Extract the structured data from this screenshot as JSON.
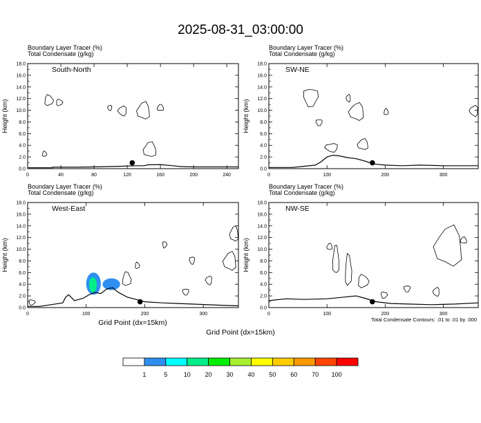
{
  "title": "2025-08-31_03:00:00",
  "field_label_1": "Boundary Layer Tracer   (%)",
  "field_label_2": "Total Condensate   (g/kg)",
  "ylabel": "Height (km)",
  "xlabel": "Grid Point (dx=15km)",
  "contour_note": "Total Condensate Contours: .01 to .01 by .000",
  "colorbar": {
    "colors": [
      "#ffffff",
      "#2f8ff0",
      "#00ffff",
      "#00ee88",
      "#00ee00",
      "#a8f030",
      "#ffff00",
      "#ffcc00",
      "#ff9900",
      "#ff4400",
      "#ff0000"
    ],
    "labels": [
      "1",
      "5",
      "10",
      "20",
      "30",
      "40",
      "50",
      "60",
      "70",
      "100"
    ]
  },
  "chart_data": [
    {
      "type": "contour",
      "name": "South-North",
      "xlim": [
        0,
        254
      ],
      "xticks": [
        0,
        40,
        80,
        120,
        160,
        200,
        240
      ],
      "ylim": [
        0,
        18
      ],
      "yticks": [
        0.0,
        2.0,
        4.0,
        6.0,
        8.0,
        10.0,
        12.0,
        14.0,
        16.0,
        18.0
      ],
      "marker": {
        "x": 126,
        "y": 1.0
      },
      "terrain": [
        [
          0,
          0.15
        ],
        [
          30,
          0.15
        ],
        [
          30,
          0.25
        ],
        [
          60,
          0.25
        ],
        [
          80,
          0.3
        ],
        [
          110,
          0.4
        ],
        [
          130,
          0.5
        ],
        [
          140,
          0.5
        ],
        [
          145,
          0.65
        ],
        [
          160,
          0.7
        ],
        [
          175,
          0.5
        ],
        [
          185,
          0.35
        ],
        [
          200,
          0.3
        ],
        [
          254,
          0.3
        ]
      ],
      "shaded": []
    },
    {
      "type": "contour",
      "name": "SW-NE",
      "xlim": [
        0,
        360
      ],
      "xticks": [
        0,
        100,
        200,
        300
      ],
      "ylim": [
        0,
        18
      ],
      "yticks": [
        0.0,
        2.0,
        4.0,
        6.0,
        8.0,
        10.0,
        12.0,
        14.0,
        16.0,
        18.0
      ],
      "marker": {
        "x": 178,
        "y": 1.0
      },
      "terrain": [
        [
          0,
          0.2
        ],
        [
          40,
          0.2
        ],
        [
          60,
          0.4
        ],
        [
          80,
          0.6
        ],
        [
          90,
          1.2
        ],
        [
          100,
          2.0
        ],
        [
          110,
          2.3
        ],
        [
          120,
          2.2
        ],
        [
          135,
          1.9
        ],
        [
          150,
          1.7
        ],
        [
          165,
          1.3
        ],
        [
          180,
          0.8
        ],
        [
          200,
          0.6
        ],
        [
          230,
          0.5
        ],
        [
          260,
          0.6
        ],
        [
          300,
          0.5
        ],
        [
          360,
          0.5
        ]
      ],
      "shaded": []
    },
    {
      "type": "contour",
      "name": "West-East",
      "xlim": [
        0,
        360
      ],
      "xticks": [
        0,
        100,
        200,
        300
      ],
      "ylim": [
        0,
        18
      ],
      "yticks": [
        0.0,
        2.0,
        4.0,
        6.0,
        8.0,
        10.0,
        12.0,
        14.0,
        16.0,
        18.0
      ],
      "marker": {
        "x": 192,
        "y": 1.0
      },
      "terrain": [
        [
          0,
          0.2
        ],
        [
          20,
          0.2
        ],
        [
          40,
          0.5
        ],
        [
          60,
          0.8
        ],
        [
          65,
          1.8
        ],
        [
          70,
          2.2
        ],
        [
          80,
          1.2
        ],
        [
          95,
          1.6
        ],
        [
          105,
          2.2
        ],
        [
          115,
          2.6
        ],
        [
          125,
          2.4
        ],
        [
          135,
          3.2
        ],
        [
          145,
          3.4
        ],
        [
          155,
          2.6
        ],
        [
          170,
          1.8
        ],
        [
          185,
          1.4
        ],
        [
          200,
          1.0
        ],
        [
          230,
          0.8
        ],
        [
          280,
          0.6
        ],
        [
          330,
          0.4
        ],
        [
          360,
          0.3
        ]
      ],
      "shaded": [
        {
          "level": 5,
          "x": [
            100,
            125
          ],
          "y": [
            2.2,
            6.0
          ]
        },
        {
          "level": 20,
          "x": [
            105,
            118
          ],
          "y": [
            2.6,
            5.2
          ]
        },
        {
          "level": 5,
          "x": [
            128,
            158
          ],
          "y": [
            3.0,
            5.0
          ]
        }
      ]
    },
    {
      "type": "contour",
      "name": "NW-SE",
      "xlim": [
        0,
        360
      ],
      "xticks": [
        0,
        100,
        200,
        300
      ],
      "ylim": [
        0,
        18
      ],
      "yticks": [
        0.0,
        2.0,
        4.0,
        6.0,
        8.0,
        10.0,
        12.0,
        14.0,
        16.0,
        18.0
      ],
      "marker": {
        "x": 178,
        "y": 1.0
      },
      "terrain": [
        [
          0,
          1.2
        ],
        [
          30,
          1.5
        ],
        [
          60,
          1.4
        ],
        [
          100,
          1.5
        ],
        [
          130,
          1.8
        ],
        [
          150,
          2.0
        ],
        [
          165,
          1.6
        ],
        [
          185,
          1.0
        ],
        [
          210,
          0.7
        ],
        [
          240,
          0.6
        ],
        [
          280,
          0.5
        ],
        [
          320,
          0.6
        ],
        [
          360,
          0.8
        ]
      ],
      "shaded": []
    }
  ]
}
